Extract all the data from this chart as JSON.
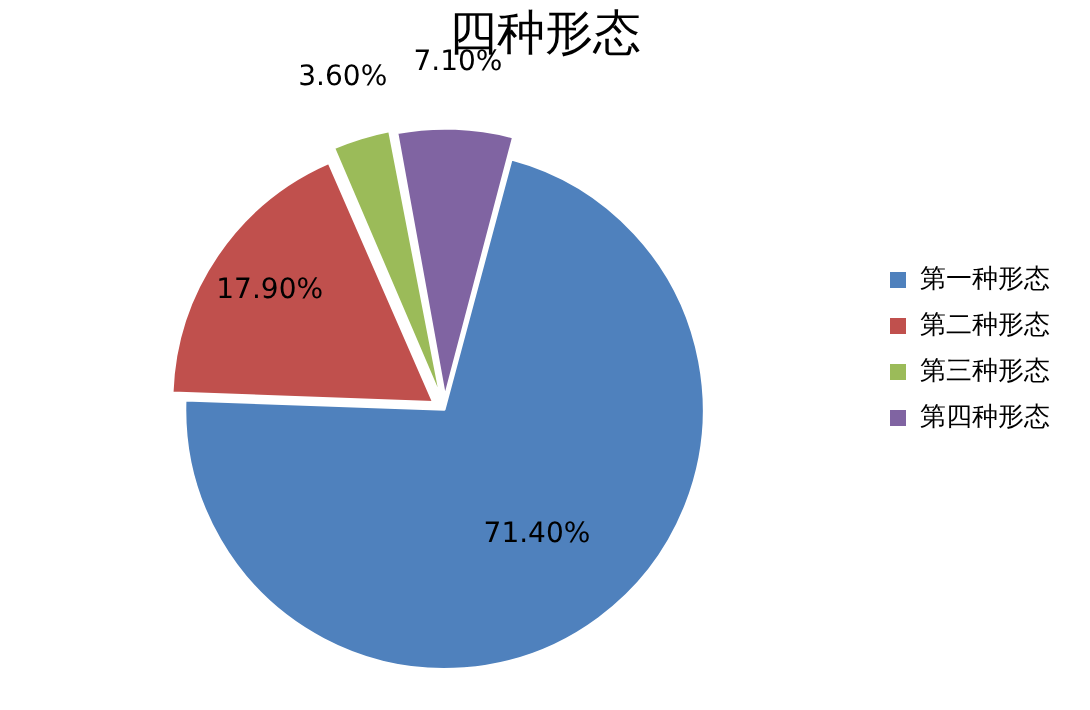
{
  "chart_data": {
    "type": "pie",
    "title": "四种形态",
    "categories": [
      "第一种形态",
      "第二种形态",
      "第三种形态",
      "第四种形态"
    ],
    "values": [
      71.4,
      17.9,
      3.6,
      7.1
    ],
    "value_labels": [
      "71.40%",
      "17.90%",
      "3.60%",
      "7.10%"
    ],
    "colors": [
      "#4f81bd",
      "#c0504d",
      "#9bbb59",
      "#8064a2"
    ],
    "legend": "right"
  }
}
